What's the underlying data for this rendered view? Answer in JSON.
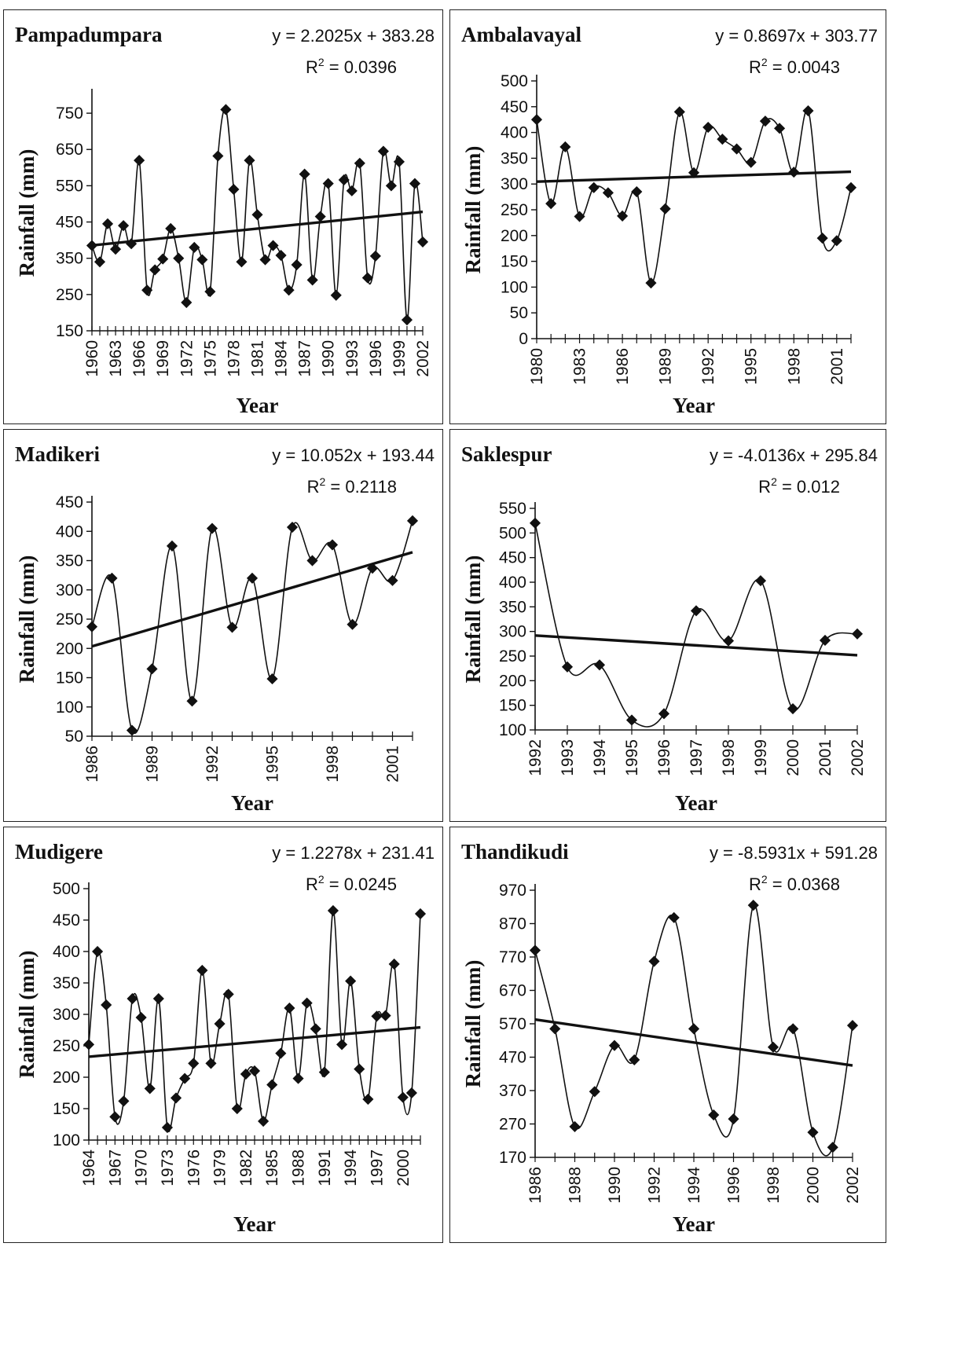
{
  "chart_data": [
    {
      "type": "line",
      "title": "Pampadumpara",
      "equation": "y = 2.2025x + 383.28",
      "r2": "R2 = 0.0396",
      "xlabel": "Year",
      "ylabel": "Rainfall (mm)",
      "ylim": [
        150,
        800
      ],
      "yticks": [
        150,
        250,
        350,
        450,
        550,
        650,
        750
      ],
      "xticks": [
        "1960",
        "1963",
        "1966",
        "1969",
        "1972",
        "1975",
        "1978",
        "1981",
        "1984",
        "1987",
        "1990",
        "1993",
        "1996",
        "1999",
        "2002"
      ],
      "x": [
        1960,
        1961,
        1962,
        1963,
        1964,
        1965,
        1966,
        1967,
        1968,
        1969,
        1970,
        1971,
        1972,
        1973,
        1974,
        1975,
        1976,
        1977,
        1978,
        1979,
        1980,
        1981,
        1982,
        1983,
        1984,
        1985,
        1986,
        1987,
        1988,
        1989,
        1990,
        1991,
        1992,
        1993,
        1994,
        1995,
        1996,
        1997,
        1998,
        1999,
        2000,
        2001,
        2002
      ],
      "values": [
        385,
        340,
        445,
        375,
        440,
        390,
        620,
        262,
        318,
        348,
        432,
        350,
        228,
        380,
        346,
        258,
        632,
        760,
        540,
        340,
        620,
        470,
        346,
        385,
        358,
        262,
        332,
        582,
        290,
        465,
        556,
        248,
        566,
        536,
        612,
        296,
        356,
        645,
        550,
        616,
        180,
        556,
        395
      ],
      "trend": {
        "slope": 2.2025,
        "intercept": 383.28
      },
      "grid": false,
      "legend": "none",
      "marker": "diamond"
    },
    {
      "type": "line",
      "title": "Ambalavayal",
      "equation": "y = 0.8697x + 303.77",
      "r2": "R2 = 0.0043",
      "xlabel": "Year",
      "ylabel": "Rainfall (mm)",
      "ylim": [
        0,
        500
      ],
      "yticks": [
        0,
        50,
        100,
        150,
        200,
        250,
        300,
        350,
        400,
        450,
        500
      ],
      "xticks": [
        "1980",
        "1983",
        "1986",
        "1989",
        "1992",
        "1995",
        "1998",
        "2001"
      ],
      "x": [
        1980,
        1981,
        1982,
        1983,
        1984,
        1985,
        1986,
        1987,
        1988,
        1989,
        1990,
        1991,
        1992,
        1993,
        1994,
        1995,
        1996,
        1997,
        1998,
        1999,
        2000,
        2001,
        2002
      ],
      "values": [
        425,
        262,
        372,
        237,
        293,
        283,
        238,
        285,
        108,
        252,
        440,
        322,
        410,
        387,
        368,
        342,
        422,
        408,
        323,
        442,
        195,
        190,
        293
      ],
      "trend": {
        "slope": 0.8697,
        "intercept": 303.77
      },
      "grid": false,
      "legend": "none",
      "marker": "diamond"
    },
    {
      "type": "line",
      "title": "Madikeri",
      "equation": "y = 10.052x + 193.44",
      "r2": "R2 = 0.2118",
      "xlabel": "Year",
      "ylabel": "Rainfall (mm)",
      "ylim": [
        50,
        450
      ],
      "yticks": [
        50,
        100,
        150,
        200,
        250,
        300,
        350,
        400,
        450
      ],
      "xticks": [
        "1986",
        "1989",
        "1992",
        "1995",
        "1998",
        "2001"
      ],
      "x": [
        1986,
        1987,
        1988,
        1989,
        1990,
        1991,
        1992,
        1993,
        1994,
        1995,
        1996,
        1997,
        1998,
        1999,
        2000,
        2001,
        2002
      ],
      "values": [
        237,
        320,
        60,
        165,
        375,
        110,
        405,
        236,
        320,
        148,
        407,
        350,
        377,
        241,
        337,
        316,
        418
      ],
      "trend": {
        "slope": 10.052,
        "intercept": 193.44
      },
      "grid": false,
      "legend": "none",
      "marker": "diamond"
    },
    {
      "type": "line",
      "title": "Saklespur",
      "equation": "y = -4.0136x + 295.84",
      "r2": "R2 = 0.012",
      "xlabel": "Year",
      "ylabel": "Rainfall (mm)",
      "ylim": [
        100,
        550
      ],
      "yticks": [
        100,
        150,
        200,
        250,
        300,
        350,
        400,
        450,
        500,
        550
      ],
      "xticks": [
        "1992",
        "1993",
        "1994",
        "1995",
        "1996",
        "1997",
        "1998",
        "1999",
        "2000",
        "2001",
        "2002"
      ],
      "x": [
        1992,
        1993,
        1994,
        1995,
        1996,
        1997,
        1998,
        1999,
        2000,
        2001,
        2002
      ],
      "values": [
        520,
        228,
        232,
        120,
        133,
        342,
        281,
        403,
        143,
        282,
        295
      ],
      "trend": {
        "slope": -4.0136,
        "intercept": 295.84
      },
      "grid": false,
      "legend": "none",
      "marker": "diamond"
    },
    {
      "type": "line",
      "title": "Mudigere",
      "equation": "y = 1.2278x + 231.41",
      "r2": "R2 = 0.0245",
      "xlabel": "Year",
      "ylabel": "Rainfall (mm)",
      "ylim": [
        100,
        500
      ],
      "yticks": [
        100,
        150,
        200,
        250,
        300,
        350,
        400,
        450,
        500
      ],
      "xticks": [
        "1964",
        "1967",
        "1970",
        "1973",
        "1976",
        "1979",
        "1982",
        "1985",
        "1988",
        "1991",
        "1994",
        "1997",
        "2000"
      ],
      "x": [
        1964,
        1965,
        1966,
        1967,
        1968,
        1969,
        1970,
        1971,
        1972,
        1973,
        1974,
        1975,
        1976,
        1977,
        1978,
        1979,
        1980,
        1981,
        1982,
        1983,
        1984,
        1985,
        1986,
        1987,
        1988,
        1989,
        1990,
        1991,
        1992,
        1993,
        1994,
        1995,
        1996,
        1997,
        1998,
        1999,
        2000,
        2001,
        2002
      ],
      "values": [
        252,
        400,
        315,
        137,
        162,
        325,
        295,
        182,
        325,
        120,
        167,
        198,
        222,
        370,
        222,
        285,
        332,
        150,
        205,
        210,
        130,
        188,
        238,
        310,
        198,
        318,
        277,
        208,
        465,
        252,
        353,
        213,
        165,
        297,
        298,
        380,
        168,
        175,
        460
      ],
      "trend": {
        "slope": 1.2278,
        "intercept": 231.41
      },
      "grid": false,
      "legend": "none",
      "marker": "diamond"
    },
    {
      "type": "line",
      "title": "Thandikudi",
      "equation": "y = -8.5931x + 591.28",
      "r2": "R2 = 0.0368",
      "xlabel": "Year",
      "ylabel": "Rainfall (mm)",
      "ylim": [
        170,
        970
      ],
      "yticks": [
        170,
        270,
        370,
        470,
        570,
        670,
        770,
        870,
        970
      ],
      "xticks": [
        "1986",
        "1988",
        "1990",
        "1992",
        "1994",
        "1996",
        "1998",
        "2000",
        "2002"
      ],
      "x": [
        1986,
        1987,
        1988,
        1989,
        1990,
        1991,
        1992,
        1993,
        1994,
        1995,
        1996,
        1997,
        1998,
        1999,
        2000,
        2001,
        2002
      ],
      "values": [
        790,
        555,
        262,
        367,
        505,
        462,
        757,
        888,
        555,
        297,
        285,
        925,
        500,
        555,
        245,
        200,
        565
      ],
      "trend": {
        "slope": -8.5931,
        "intercept": 591.28
      },
      "grid": false,
      "legend": "none",
      "marker": "diamond"
    }
  ]
}
